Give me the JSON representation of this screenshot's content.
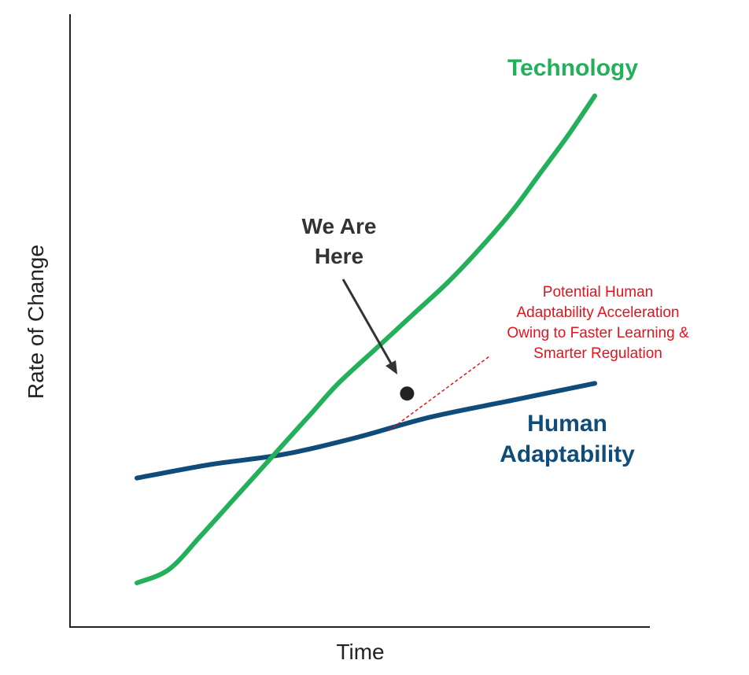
{
  "chart_data": {
    "type": "line",
    "title": "",
    "xlabel": "Time",
    "ylabel": "Rate of Change",
    "grid": false,
    "legend": "none",
    "series": [
      {
        "name": "Technology",
        "color": "#22b05a",
        "points": [
          [
            0.0,
            0.0
          ],
          [
            0.07,
            0.04
          ],
          [
            0.14,
            0.14
          ],
          [
            0.22,
            0.26
          ],
          [
            0.3,
            0.38
          ],
          [
            0.38,
            0.5
          ],
          [
            0.44,
            0.59
          ],
          [
            0.52,
            0.69
          ],
          [
            0.6,
            0.79
          ],
          [
            0.68,
            0.89
          ],
          [
            0.75,
            0.99
          ],
          [
            0.82,
            1.1
          ],
          [
            0.88,
            1.21
          ],
          [
            0.94,
            1.32
          ],
          [
            1.0,
            1.44
          ]
        ]
      },
      {
        "name": "Human Adaptability",
        "color": "#0f4c7a",
        "points": [
          [
            0.0,
            0.31
          ],
          [
            0.16,
            0.35
          ],
          [
            0.32,
            0.38
          ],
          [
            0.48,
            0.43
          ],
          [
            0.64,
            0.49
          ],
          [
            0.82,
            0.54
          ],
          [
            1.0,
            0.59
          ]
        ]
      }
    ],
    "projection": {
      "label_lines": [
        "Potential Human",
        "Adaptability Acceleration",
        "Owing to Faster Learning &",
        "Smarter Regulation"
      ],
      "color": "#e0141e",
      "from": [
        0.55,
        0.45
      ],
      "to": [
        0.77,
        0.67
      ]
    },
    "marker": {
      "label_lines": [
        "We Are",
        "Here"
      ],
      "point": [
        0.59,
        0.56
      ],
      "color": "#222222"
    },
    "series_labels": {
      "technology": "Technology",
      "human_lines": [
        "Human",
        "Adaptability"
      ]
    }
  }
}
